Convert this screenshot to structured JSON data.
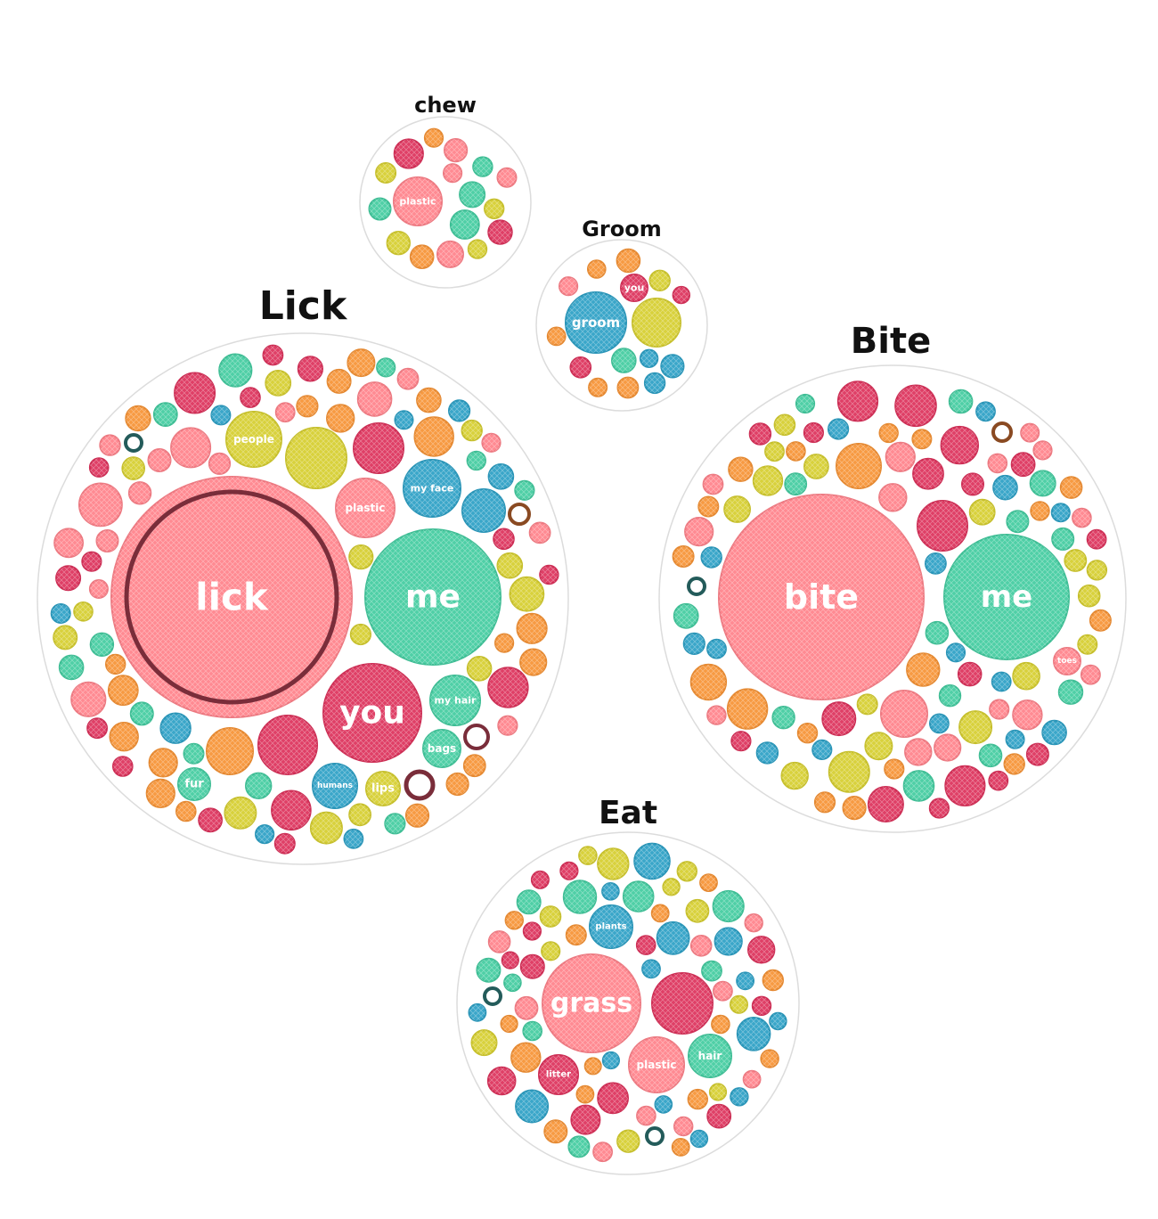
{
  "palette": {
    "pink": "#ff8a92",
    "red": "#df3f66",
    "teal": "#4fcfa6",
    "blue": "#3aa6c9",
    "yellow": "#d8d13c",
    "orange": "#f79a42",
    "ring_dark_red": "#7a2d3a",
    "ring_dark_teal": "#235b5a",
    "ring_brown": "#8a4a22"
  },
  "chart_data": [
    {
      "type": "packed-bubble",
      "title": "chew",
      "labeled": [
        {
          "label": "plastic",
          "color": "pink"
        }
      ],
      "unlabeled_count": 16
    },
    {
      "type": "packed-bubble",
      "title": "Groom",
      "labeled": [
        {
          "label": "groom",
          "color": "blue"
        },
        {
          "label": "you",
          "color": "red"
        }
      ],
      "unlabeled_count": 14
    },
    {
      "type": "packed-bubble",
      "title": "Lick",
      "labeled": [
        {
          "label": "lick",
          "color": "pink",
          "highlight": true
        },
        {
          "label": "me",
          "color": "teal"
        },
        {
          "label": "you",
          "color": "red"
        },
        {
          "label": "people",
          "color": "yellow"
        },
        {
          "label": "plastic",
          "color": "pink"
        },
        {
          "label": "my face",
          "color": "blue"
        },
        {
          "label": "my hair",
          "color": "teal"
        },
        {
          "label": "bags",
          "color": "teal"
        },
        {
          "label": "fur",
          "color": "teal"
        },
        {
          "label": "humans",
          "color": "blue"
        },
        {
          "label": "lips",
          "color": "yellow"
        }
      ],
      "unlabeled_count": 120
    },
    {
      "type": "packed-bubble",
      "title": "Bite",
      "labeled": [
        {
          "label": "bite",
          "color": "pink"
        },
        {
          "label": "me",
          "color": "teal"
        },
        {
          "label": "toes",
          "color": "pink"
        }
      ],
      "unlabeled_count": 100
    },
    {
      "type": "packed-bubble",
      "title": "Eat",
      "labeled": [
        {
          "label": "grass",
          "color": "pink"
        },
        {
          "label": "plants",
          "color": "blue"
        },
        {
          "label": "hair",
          "color": "teal"
        },
        {
          "label": "plastic",
          "color": "pink"
        },
        {
          "label": "litter",
          "color": "red"
        }
      ],
      "unlabeled_count": 90
    }
  ]
}
